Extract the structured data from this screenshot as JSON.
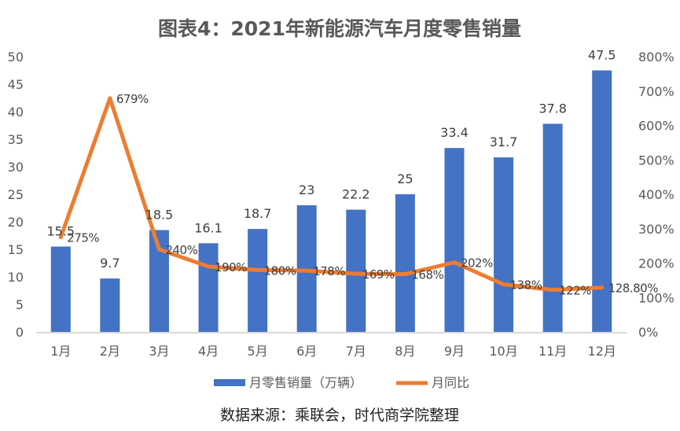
{
  "chart_data": {
    "type": "bar+line",
    "title": "图表4：2021年新能源汽车月度零售销量",
    "categories": [
      "1月",
      "2月",
      "3月",
      "4月",
      "5月",
      "6月",
      "7月",
      "8月",
      "9月",
      "10月",
      "11月",
      "12月"
    ],
    "series": [
      {
        "name": "月零售销量（万辆）",
        "type": "bar",
        "axis": "left",
        "color": "#4472C4",
        "values": [
          15.5,
          9.7,
          18.5,
          16.1,
          18.7,
          23,
          22.2,
          25,
          33.4,
          31.7,
          37.8,
          47.5
        ],
        "labels": [
          "15.5",
          "9.7",
          "18.5",
          "16.1",
          "18.7",
          "23",
          "22.2",
          "25",
          "33.4",
          "31.7",
          "37.8",
          "47.5"
        ]
      },
      {
        "name": "月同比",
        "type": "line",
        "axis": "right",
        "color": "#ED7D31",
        "values": [
          275,
          679,
          240,
          190,
          180,
          178,
          169,
          168,
          202,
          138,
          122,
          128.8
        ],
        "labels": [
          "275%",
          "679%",
          "240%",
          "190%",
          "180%",
          "178%",
          "169%",
          "168%",
          "202%",
          "138%",
          "122%",
          "128.80%"
        ]
      }
    ],
    "y_left": {
      "range": [
        0,
        50
      ],
      "ticks": [
        "0",
        "5",
        "10",
        "15",
        "20",
        "25",
        "30",
        "35",
        "40",
        "45",
        "50"
      ]
    },
    "y_right": {
      "range": [
        0,
        800
      ],
      "ticks": [
        "0%",
        "100%",
        "200%",
        "300%",
        "400%",
        "500%",
        "600%",
        "700%",
        "800%"
      ]
    },
    "legend_placement": "bottom",
    "grid": false
  },
  "source": "数据来源：乘联会，时代商学院整理"
}
